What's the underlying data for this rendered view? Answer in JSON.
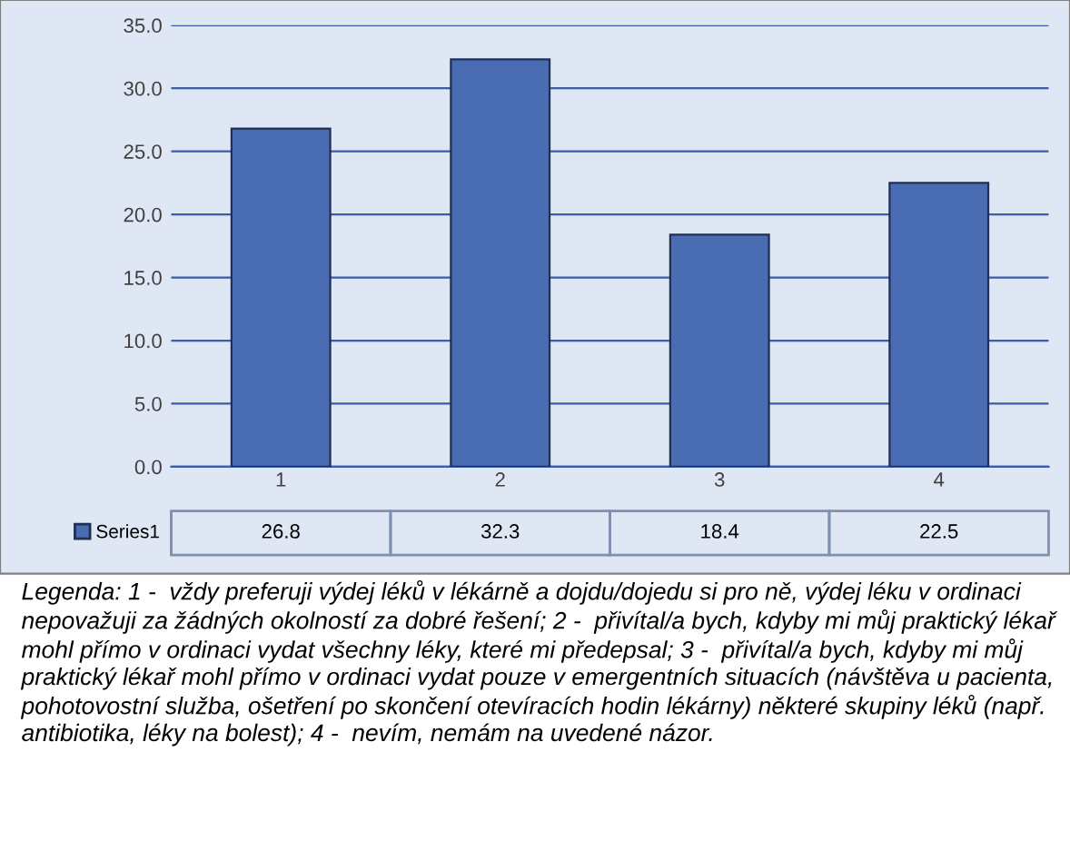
{
  "chart_data": {
    "type": "bar",
    "categories": [
      "1",
      "2",
      "3",
      "4"
    ],
    "series": [
      {
        "name": "Series1",
        "color": "#4a6cb3",
        "values": [
          26.8,
          32.3,
          18.4,
          22.5
        ]
      }
    ],
    "ylim": [
      0,
      35
    ],
    "yticks": [
      {
        "value": 0,
        "label": "0.0"
      },
      {
        "value": 5,
        "label": "5.0"
      },
      {
        "value": 10,
        "label": "10.0"
      },
      {
        "value": 15,
        "label": "15.0"
      },
      {
        "value": 20,
        "label": "20.0"
      },
      {
        "value": 25,
        "label": "25.0"
      },
      {
        "value": 30,
        "label": "30.0"
      },
      {
        "value": 35,
        "label": "35.0"
      }
    ],
    "grid": "y",
    "data_labels": true,
    "annotations": [
      "Legenda: 1 -  vždy preferuji výdej léků v lékárně a dojdu/dojedu si pro ně, výdej léku v ordinaci nepovažuji za žádných okolností za dobré řešení; 2 -  přivítal/a bych, kdyby mi můj praktický lékař mohl přímo v ordinaci vydat všechny léky, které mi předepsal; 3 -  přivítal/a bych, kdyby mi můj praktický lékař mohl přímo v ordinaci vydat pouze v emergentních situacích (návštěva u pacienta, pohotovostní služba, ošetření po skončení otevíracích hodin lékárny) některé skupiny léků (např. antibiotika, léky na bolest); 4 -  nevím, nemám na uvedené názor."
    ]
  }
}
